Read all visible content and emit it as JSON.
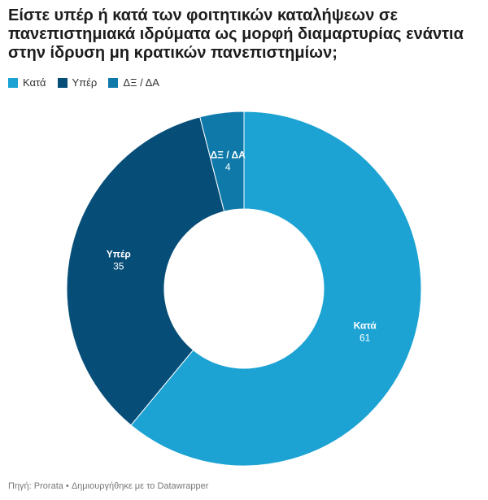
{
  "chart_data": {
    "type": "pie",
    "title": "Είστε υπέρ ή κατά των φοιτητικών καταλήψεων σε πανεπιστημιακά ιδρύματα ως μορφή διαμαρτυρίας ενάντια στην ίδρυση μη κρατικών πανεπιστημίων;",
    "categories": [
      "Κατά",
      "Υπέρ",
      "ΔΞ / ΔΑ"
    ],
    "values": [
      61,
      35,
      4
    ],
    "colors": [
      "#1ca3d3",
      "#064e78",
      "#0f7aaa"
    ],
    "footer": "Πηγή: Prorata • Δημιουργήθηκε με το Datawrapper"
  }
}
